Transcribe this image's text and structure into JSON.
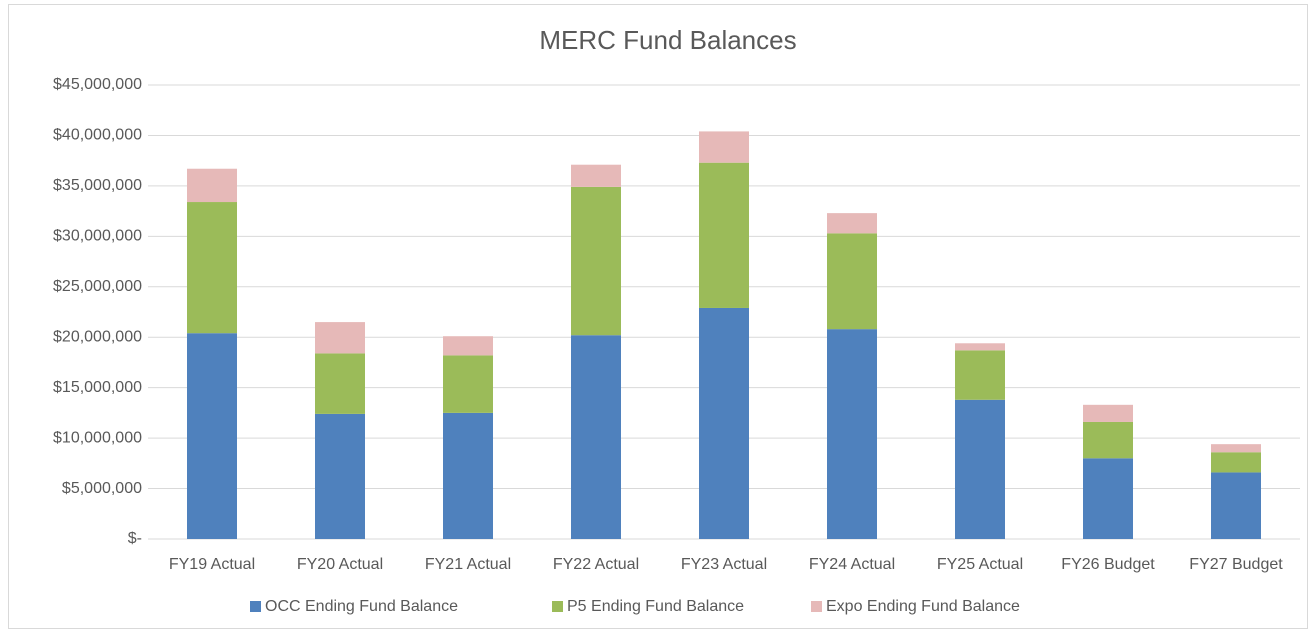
{
  "chart_data": {
    "type": "stacked_bar",
    "title": "MERC Fund Balances",
    "categories": [
      "FY19 Actual",
      "FY20 Actual",
      "FY21 Actual",
      "FY22 Actual",
      "FY23 Actual",
      "FY24 Actual",
      "FY25 Actual",
      "FY26 Budget",
      "FY27 Budget"
    ],
    "series": [
      {
        "name": "OCC Ending Fund Balance",
        "color": "#4f81bd",
        "values": [
          20400000,
          12400000,
          12500000,
          20200000,
          22900000,
          20800000,
          13800000,
          8000000,
          6600000
        ]
      },
      {
        "name": "P5 Ending Fund Balance",
        "color": "#9bbb59",
        "values": [
          13000000,
          6000000,
          5700000,
          14700000,
          14400000,
          9500000,
          4900000,
          3600000,
          2000000
        ]
      },
      {
        "name": "Expo Ending Fund Balance",
        "color": "#e6b9b8",
        "values": [
          3300000,
          3100000,
          1900000,
          2200000,
          3100000,
          2000000,
          700000,
          1700000,
          800000
        ]
      }
    ],
    "ylim": [
      0,
      45000000
    ],
    "yticks": [
      {
        "value": 0,
        "label": "$-"
      },
      {
        "value": 5000000,
        "label": "$5,000,000"
      },
      {
        "value": 10000000,
        "label": "$10,000,000"
      },
      {
        "value": 15000000,
        "label": "$15,000,000"
      },
      {
        "value": 20000000,
        "label": "$20,000,000"
      },
      {
        "value": 25000000,
        "label": "$25,000,000"
      },
      {
        "value": 30000000,
        "label": "$30,000,000"
      },
      {
        "value": 35000000,
        "label": "$35,000,000"
      },
      {
        "value": 40000000,
        "label": "$40,000,000"
      },
      {
        "value": 45000000,
        "label": "$45,000,000"
      }
    ],
    "grid": true,
    "legend": "bottom"
  }
}
